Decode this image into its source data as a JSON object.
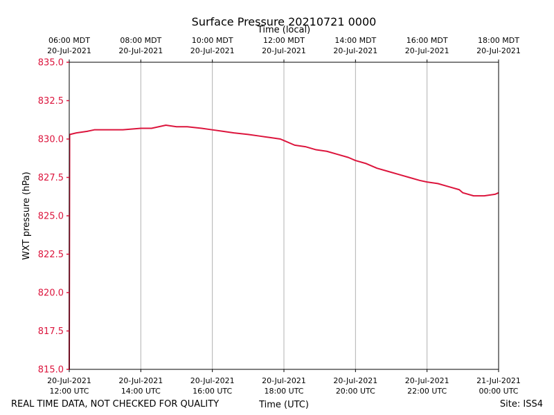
{
  "chart_data": {
    "type": "line",
    "title": "Surface Pressure 20210721 0000",
    "top_xlabel": "Time (local)",
    "xlabel": "Time (UTC)",
    "ylabel": "WXT pressure (hPa)",
    "ylim": [
      815.0,
      835.0
    ],
    "xlim_hours_utc": [
      12,
      24
    ],
    "yticks": [
      815.0,
      817.5,
      820.0,
      822.5,
      825.0,
      827.5,
      830.0,
      832.5,
      835.0
    ],
    "ytick_labels": [
      "815.0",
      "817.5",
      "820.0",
      "822.5",
      "825.0",
      "827.5",
      "830.0",
      "832.5",
      "835.0"
    ],
    "grid": "vertical",
    "colors": {
      "series": "#dc143c",
      "ylabel": "#dc143c",
      "grid": "#b0b0b0",
      "axis": "#000000"
    },
    "bottom_ticks": [
      {
        "hour": 12,
        "line1": "20-Jul-2021",
        "line2": "12:00 UTC"
      },
      {
        "hour": 14,
        "line1": "20-Jul-2021",
        "line2": "14:00 UTC"
      },
      {
        "hour": 16,
        "line1": "20-Jul-2021",
        "line2": "16:00 UTC"
      },
      {
        "hour": 18,
        "line1": "20-Jul-2021",
        "line2": "18:00 UTC"
      },
      {
        "hour": 20,
        "line1": "20-Jul-2021",
        "line2": "20:00 UTC"
      },
      {
        "hour": 22,
        "line1": "20-Jul-2021",
        "line2": "22:00 UTC"
      },
      {
        "hour": 24,
        "line1": "21-Jul-2021",
        "line2": "00:00 UTC"
      }
    ],
    "top_ticks": [
      {
        "hour": 12,
        "line1": "06:00 MDT",
        "line2": "20-Jul-2021"
      },
      {
        "hour": 14,
        "line1": "08:00 MDT",
        "line2": "20-Jul-2021"
      },
      {
        "hour": 16,
        "line1": "10:00 MDT",
        "line2": "20-Jul-2021"
      },
      {
        "hour": 18,
        "line1": "12:00 MDT",
        "line2": "20-Jul-2021"
      },
      {
        "hour": 20,
        "line1": "14:00 MDT",
        "line2": "20-Jul-2021"
      },
      {
        "hour": 22,
        "line1": "16:00 MDT",
        "line2": "20-Jul-2021"
      },
      {
        "hour": 24,
        "line1": "18:00 MDT",
        "line2": "20-Jul-2021"
      }
    ],
    "series": [
      {
        "name": "WXT pressure",
        "x_hours_utc": [
          12.0,
          12.01,
          12.02,
          12.2,
          12.5,
          12.7,
          13.0,
          13.5,
          14.0,
          14.3,
          14.5,
          14.7,
          15.0,
          15.3,
          15.7,
          16.0,
          16.3,
          16.6,
          17.0,
          17.3,
          17.6,
          17.9,
          18.0,
          18.3,
          18.6,
          18.9,
          19.2,
          19.5,
          19.8,
          20.0,
          20.3,
          20.6,
          20.9,
          21.2,
          21.5,
          21.8,
          22.0,
          22.3,
          22.6,
          22.9,
          23.0,
          23.3,
          23.6,
          23.9,
          24.0
        ],
        "values": [
          815.0,
          830.3,
          830.3,
          830.4,
          830.5,
          830.6,
          830.6,
          830.6,
          830.7,
          830.7,
          830.8,
          830.9,
          830.8,
          830.8,
          830.7,
          830.6,
          830.5,
          830.4,
          830.3,
          830.2,
          830.1,
          830.0,
          829.9,
          829.6,
          829.5,
          829.3,
          829.2,
          829.0,
          828.8,
          828.6,
          828.4,
          828.1,
          827.9,
          827.7,
          827.5,
          827.3,
          827.2,
          827.1,
          826.9,
          826.7,
          826.5,
          826.3,
          826.3,
          826.4,
          826.5
        ]
      }
    ]
  },
  "footer": {
    "left_note": "REAL TIME DATA, NOT CHECKED FOR QUALITY",
    "site": "Site: ISS4"
  }
}
